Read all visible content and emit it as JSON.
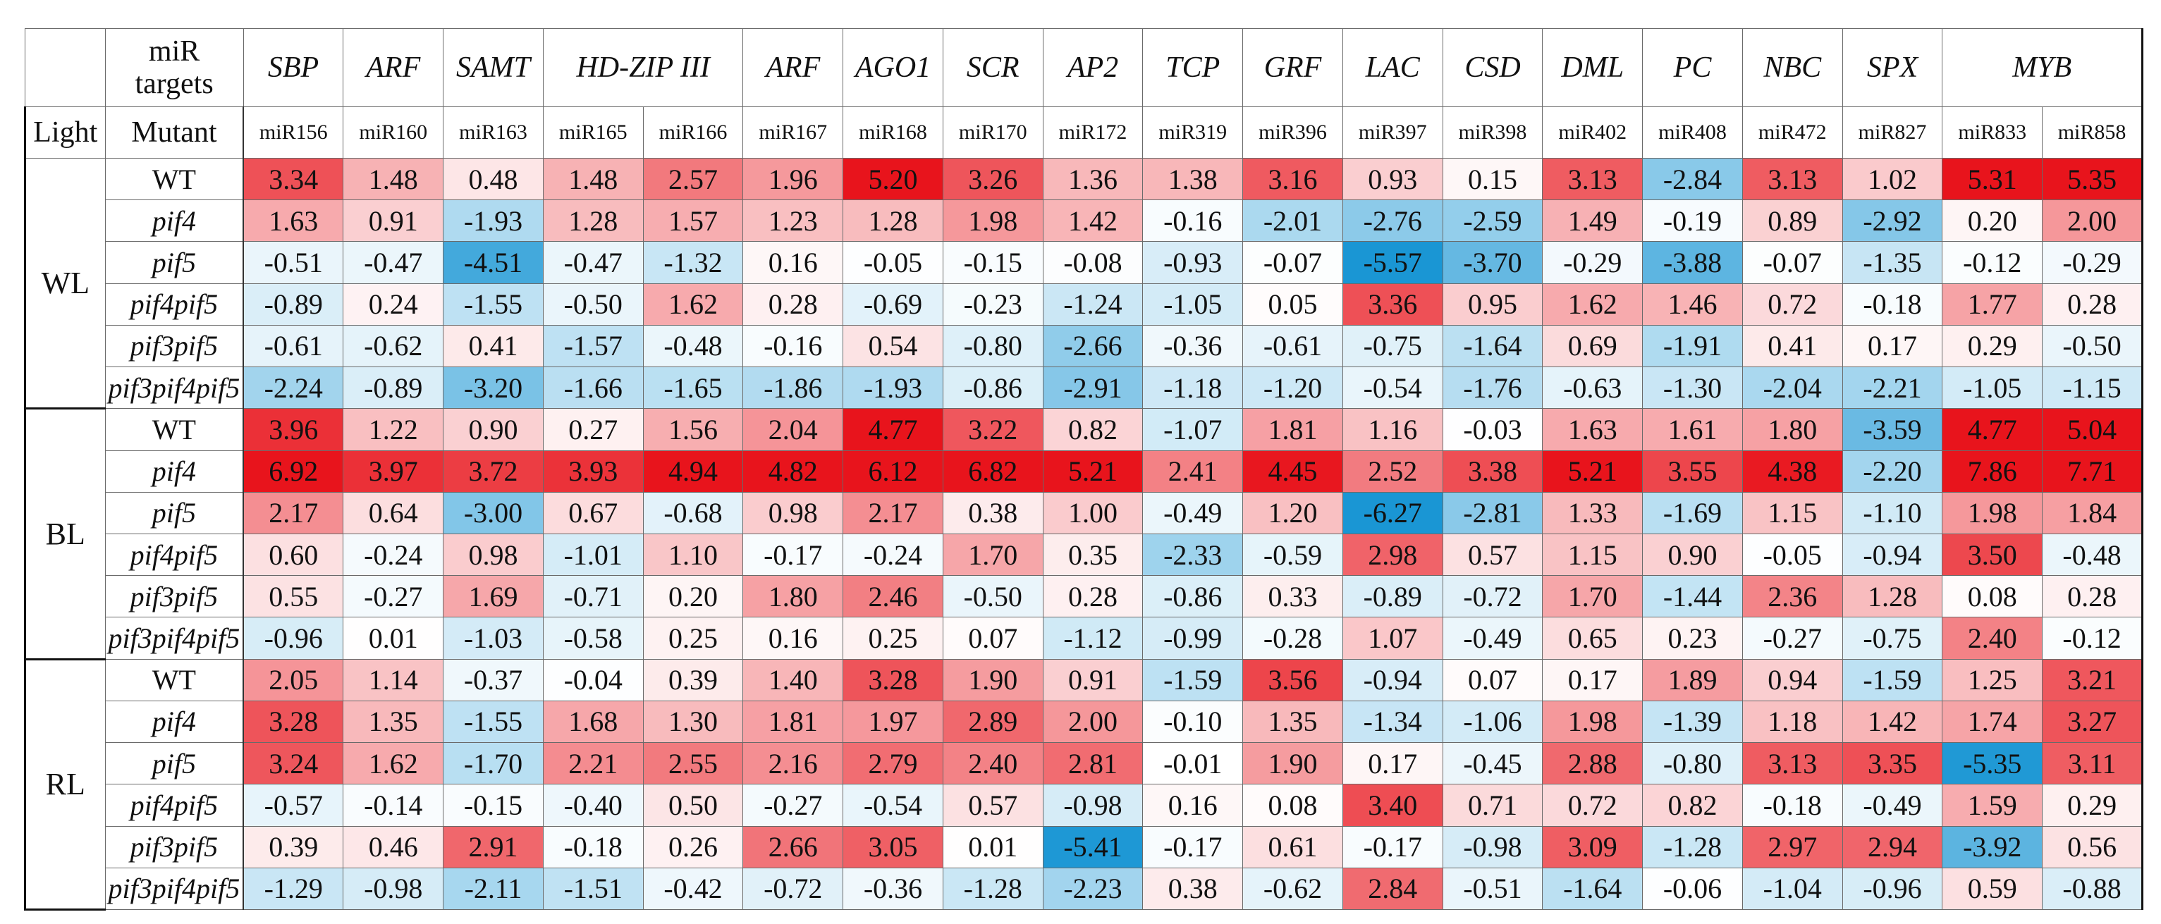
{
  "chart_data": {
    "type": "heatmap",
    "header": {
      "targets_label_line1": "miR",
      "targets_label_line2": "targets",
      "light_label": "Light",
      "mutant_label": "Mutant"
    },
    "targets": [
      {
        "name": "SBP",
        "span": 1
      },
      {
        "name": "ARF",
        "span": 1
      },
      {
        "name": "SAMT",
        "span": 1
      },
      {
        "name": "HD-ZIP III",
        "span": 2
      },
      {
        "name": "ARF",
        "span": 1
      },
      {
        "name": "AGO1",
        "span": 1
      },
      {
        "name": "SCR",
        "span": 1
      },
      {
        "name": "AP2",
        "span": 1
      },
      {
        "name": "TCP",
        "span": 1
      },
      {
        "name": "GRF",
        "span": 1
      },
      {
        "name": "LAC",
        "span": 1
      },
      {
        "name": "CSD",
        "span": 1
      },
      {
        "name": "DML",
        "span": 1
      },
      {
        "name": "PC",
        "span": 1
      },
      {
        "name": "NBC",
        "span": 1
      },
      {
        "name": "SPX",
        "span": 1
      },
      {
        "name": "MYB",
        "span": 2
      }
    ],
    "mirnas": [
      "miR156",
      "miR160",
      "miR163",
      "miR165",
      "miR166",
      "miR167",
      "miR168",
      "miR170",
      "miR172",
      "miR319",
      "miR396",
      "miR397",
      "miR398",
      "miR402",
      "miR408",
      "miR472",
      "miR827",
      "miR833",
      "miR858"
    ],
    "groups": [
      {
        "light": "WL",
        "rows": [
          {
            "mutant": "WT",
            "italic": false,
            "values": [
              3.34,
              1.48,
              0.48,
              1.48,
              2.57,
              1.96,
              5.2,
              3.26,
              1.36,
              1.38,
              3.16,
              0.93,
              0.15,
              3.13,
              -2.84,
              3.13,
              1.02,
              5.31,
              5.35
            ]
          },
          {
            "mutant": "pif4",
            "italic": true,
            "values": [
              1.63,
              0.91,
              -1.93,
              1.28,
              1.57,
              1.23,
              1.28,
              1.98,
              1.42,
              -0.16,
              -2.01,
              -2.76,
              -2.59,
              1.49,
              -0.19,
              0.89,
              -2.92,
              0.2,
              2.0
            ]
          },
          {
            "mutant": "pif5",
            "italic": true,
            "values": [
              -0.51,
              -0.47,
              -4.51,
              -0.47,
              -1.32,
              0.16,
              -0.05,
              -0.15,
              -0.08,
              -0.93,
              -0.07,
              -5.57,
              -3.7,
              -0.29,
              -3.88,
              -0.07,
              -1.35,
              -0.12,
              -0.29
            ]
          },
          {
            "mutant": "pif4pif5",
            "italic": true,
            "values": [
              -0.89,
              0.24,
              -1.55,
              -0.5,
              1.62,
              0.28,
              -0.69,
              -0.23,
              -1.24,
              -1.05,
              0.05,
              3.36,
              0.95,
              1.62,
              1.46,
              0.72,
              -0.18,
              1.77,
              0.28
            ]
          },
          {
            "mutant": "pif3pif5",
            "italic": true,
            "values": [
              -0.61,
              -0.62,
              0.41,
              -1.57,
              -0.48,
              -0.16,
              0.54,
              -0.8,
              -2.66,
              -0.36,
              -0.61,
              -0.75,
              -1.64,
              0.69,
              -1.91,
              0.41,
              0.17,
              0.29,
              -0.5
            ]
          },
          {
            "mutant": "pif3pif4pif5",
            "italic": true,
            "values": [
              -2.24,
              -0.89,
              -3.2,
              -1.66,
              -1.65,
              -1.86,
              -1.93,
              -0.86,
              -2.91,
              -1.18,
              -1.2,
              -0.54,
              -1.76,
              -0.63,
              -1.3,
              -2.04,
              -2.21,
              -1.05,
              -1.15
            ]
          }
        ]
      },
      {
        "light": "BL",
        "rows": [
          {
            "mutant": "WT",
            "italic": false,
            "values": [
              3.96,
              1.22,
              0.9,
              0.27,
              1.56,
              2.04,
              4.77,
              3.22,
              0.82,
              -1.07,
              1.81,
              1.16,
              -0.03,
              1.63,
              1.61,
              1.8,
              -3.59,
              4.77,
              5.04
            ]
          },
          {
            "mutant": "pif4",
            "italic": true,
            "values": [
              6.92,
              3.97,
              3.72,
              3.93,
              4.94,
              4.82,
              6.12,
              6.82,
              5.21,
              2.41,
              4.45,
              2.52,
              3.38,
              5.21,
              3.55,
              4.38,
              -2.2,
              7.86,
              7.71
            ]
          },
          {
            "mutant": "pif5",
            "italic": true,
            "values": [
              2.17,
              0.64,
              -3.0,
              0.67,
              -0.68,
              0.98,
              2.17,
              0.38,
              1.0,
              -0.49,
              1.2,
              -6.27,
              -2.81,
              1.33,
              -1.69,
              1.15,
              -1.1,
              1.98,
              1.84
            ]
          },
          {
            "mutant": "pif4pif5",
            "italic": true,
            "values": [
              0.6,
              -0.24,
              0.98,
              -1.01,
              1.1,
              -0.17,
              -0.24,
              1.7,
              0.35,
              -2.33,
              -0.59,
              2.98,
              0.57,
              1.15,
              0.9,
              -0.05,
              -0.94,
              3.5,
              -0.48
            ]
          },
          {
            "mutant": "pif3pif5",
            "italic": true,
            "values": [
              0.55,
              -0.27,
              1.69,
              -0.71,
              0.2,
              1.8,
              2.46,
              -0.5,
              0.28,
              -0.86,
              0.33,
              -0.89,
              -0.72,
              1.7,
              -1.44,
              2.36,
              1.28,
              0.08,
              0.28
            ]
          },
          {
            "mutant": "pif3pif4pif5",
            "italic": true,
            "values": [
              -0.96,
              0.01,
              -1.03,
              -0.58,
              0.25,
              0.16,
              0.25,
              0.07,
              -1.12,
              -0.99,
              -0.28,
              1.07,
              -0.49,
              0.65,
              0.23,
              -0.27,
              -0.75,
              2.4,
              -0.12
            ]
          }
        ]
      },
      {
        "light": "RL",
        "rows": [
          {
            "mutant": "WT",
            "italic": false,
            "values": [
              2.05,
              1.14,
              -0.37,
              -0.04,
              0.39,
              1.4,
              3.28,
              1.9,
              0.91,
              -1.59,
              3.56,
              -0.94,
              0.07,
              0.17,
              1.89,
              0.94,
              -1.59,
              1.25,
              3.21
            ]
          },
          {
            "mutant": "pif4",
            "italic": true,
            "values": [
              3.28,
              1.35,
              -1.55,
              1.68,
              1.3,
              1.81,
              1.97,
              2.89,
              2.0,
              -0.1,
              1.35,
              -1.34,
              -1.06,
              1.98,
              -1.39,
              1.18,
              1.42,
              1.74,
              3.27
            ]
          },
          {
            "mutant": "pif5",
            "italic": true,
            "values": [
              3.24,
              1.62,
              -1.7,
              2.21,
              2.55,
              2.16,
              2.79,
              2.4,
              2.81,
              -0.01,
              1.9,
              0.17,
              -0.45,
              2.88,
              -0.8,
              3.13,
              3.35,
              -5.35,
              3.11
            ]
          },
          {
            "mutant": "pif4pif5",
            "italic": true,
            "values": [
              -0.57,
              -0.14,
              -0.15,
              -0.4,
              0.5,
              -0.27,
              -0.54,
              0.57,
              -0.98,
              0.16,
              0.08,
              3.4,
              0.71,
              0.72,
              0.82,
              -0.18,
              -0.49,
              1.59,
              0.29
            ]
          },
          {
            "mutant": "pif3pif5",
            "italic": true,
            "values": [
              0.39,
              0.46,
              2.91,
              -0.18,
              0.26,
              2.66,
              3.05,
              0.01,
              -5.41,
              -0.17,
              0.61,
              -0.17,
              -0.98,
              3.09,
              -1.28,
              2.97,
              2.94,
              -3.92,
              0.56
            ]
          },
          {
            "mutant": "pif3pif4pif5",
            "italic": true,
            "values": [
              -1.29,
              -0.98,
              -2.11,
              -1.51,
              -0.42,
              -0.72,
              -0.36,
              -1.28,
              -2.23,
              0.38,
              -0.62,
              2.84,
              -0.51,
              -1.64,
              -0.06,
              -1.04,
              -0.96,
              0.59,
              -0.88
            ]
          }
        ]
      }
    ],
    "color_scale": {
      "positive": "#e8141c",
      "negative": "#1a96d4",
      "neutral": "#ffffff",
      "positive_saturation_value": 4.5,
      "negative_saturation_value": 5.5
    }
  }
}
